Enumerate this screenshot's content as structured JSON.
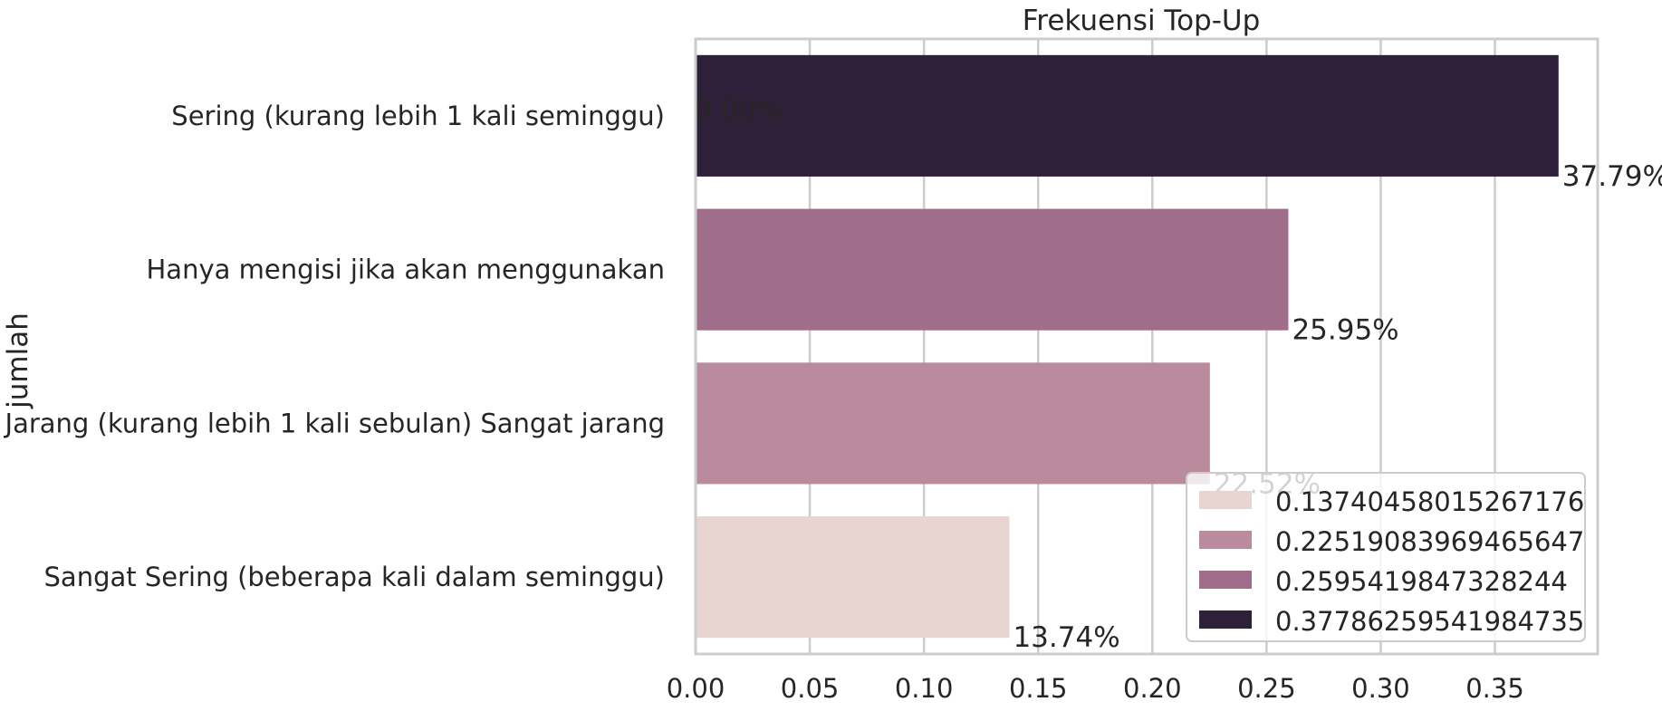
{
  "chart_data": {
    "type": "bar",
    "orientation": "horizontal",
    "title": "Frekuensi Top-Up",
    "xlabel": "",
    "ylabel": "jumlah",
    "categories": [
      "Sering (kurang lebih 1 kali seminggu)",
      "Hanya mengisi jika akan menggunakan",
      "Jarang (kurang lebih 1 kali sebulan) Sangat jarang",
      "Sangat Sering (beberapa kali dalam seminggu)"
    ],
    "values": [
      0.37786259541984735,
      0.2595419847328244,
      0.22519083969465647,
      0.13740458015267176
    ],
    "bar_labels": [
      "37.79%",
      "25.95%",
      "22.52%",
      "13.74%"
    ],
    "stray_label": "0.00%",
    "bar_colors": [
      "#2f2039",
      "#a06d8b",
      "#ba8a9d",
      "#e8d4d1"
    ],
    "xlim": [
      0,
      0.395
    ],
    "xticks": [
      0.0,
      0.05,
      0.1,
      0.15,
      0.2,
      0.25,
      0.3,
      0.35
    ],
    "xtick_labels": [
      "0.00",
      "0.05",
      "0.10",
      "0.15",
      "0.20",
      "0.25",
      "0.30",
      "0.35"
    ],
    "grid": "vertical",
    "legend": {
      "placement": "lower-right",
      "entries": [
        {
          "label": "0.13740458015267176",
          "color": "#e8d4d1"
        },
        {
          "label": "0.22519083969465647",
          "color": "#ba8a9d"
        },
        {
          "label": "0.2595419847328244",
          "color": "#a06d8b"
        },
        {
          "label": "0.37786259541984735",
          "color": "#2f2039"
        }
      ]
    }
  }
}
